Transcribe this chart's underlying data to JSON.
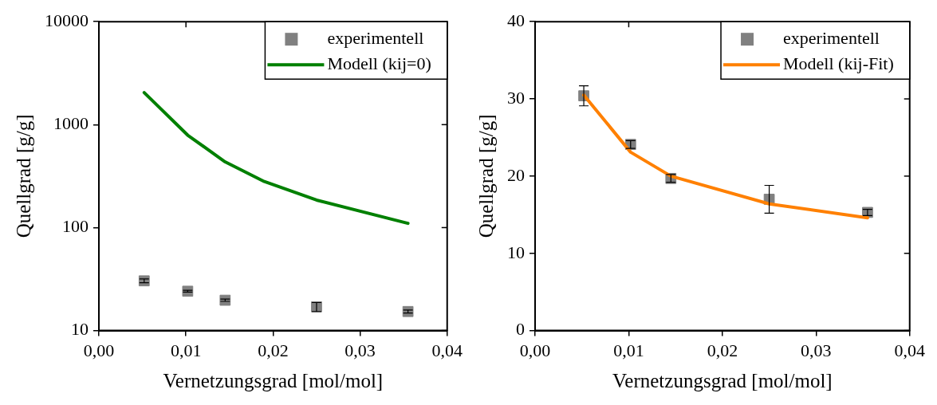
{
  "chart_data": [
    {
      "type": "scatter",
      "xlabel": "Vernetzungsgrad [mol/mol]",
      "ylabel": "Quellgrad [g/g]",
      "log": "y",
      "legend": "top right",
      "xlim": [
        0,
        0.04
      ],
      "xticks": [
        {
          "value": 0,
          "label": "0,00"
        },
        {
          "value": 0.01,
          "label": "0,01"
        },
        {
          "value": 0.02,
          "label": "0,02"
        },
        {
          "value": 0.03,
          "label": "0,03"
        },
        {
          "value": 0.04,
          "label": "0,04"
        }
      ],
      "ylim": [
        10,
        10000
      ],
      "yticks": [
        10,
        100,
        1000,
        10000
      ],
      "series": [
        {
          "name": "experimentell",
          "marker": "square",
          "color": "#808080",
          "x": [
            0.0052,
            0.0102,
            0.0145,
            0.025,
            0.0355
          ],
          "values": [
            30.4,
            24.1,
            19.7,
            17.0,
            15.3
          ],
          "errors": [
            1.3,
            0.5,
            0.5,
            1.7,
            0.5
          ]
        },
        {
          "name": "Modell (kij=0)",
          "type": "line",
          "marker": "none",
          "color": "#008000",
          "x": [
            0.0052,
            0.0102,
            0.0145,
            0.019,
            0.025,
            0.0355
          ],
          "values": [
            2050,
            790,
            435,
            280,
            185,
            110
          ]
        }
      ]
    },
    {
      "type": "scatter",
      "xlabel": "Vernetzungsgrad [mol/mol]",
      "ylabel": "Quellgrad [g/g]",
      "legend": "top right",
      "xlim": [
        0,
        0.04
      ],
      "xticks": [
        {
          "value": 0,
          "label": "0,00"
        },
        {
          "value": 0.01,
          "label": "0,01"
        },
        {
          "value": 0.02,
          "label": "0,02"
        },
        {
          "value": 0.03,
          "label": "0,03"
        },
        {
          "value": 0.04,
          "label": "0,04"
        }
      ],
      "ylim": [
        0,
        40
      ],
      "yticks": [
        0,
        10,
        20,
        30,
        40
      ],
      "series": [
        {
          "name": "experimentell",
          "marker": "square",
          "color": "#808080",
          "x": [
            0.0052,
            0.0102,
            0.0145,
            0.025,
            0.0355
          ],
          "values": [
            30.4,
            24.1,
            19.7,
            17.0,
            15.3
          ],
          "errors": [
            1.3,
            0.5,
            0.5,
            1.8,
            0.4
          ]
        },
        {
          "name": "Modell (kij-Fit)",
          "type": "line",
          "marker": "none",
          "color": "#ff8000",
          "x": [
            0.0052,
            0.0102,
            0.0145,
            0.025,
            0.0355
          ],
          "values": [
            30.5,
            23.1,
            20.0,
            16.4,
            14.6
          ]
        }
      ]
    }
  ]
}
